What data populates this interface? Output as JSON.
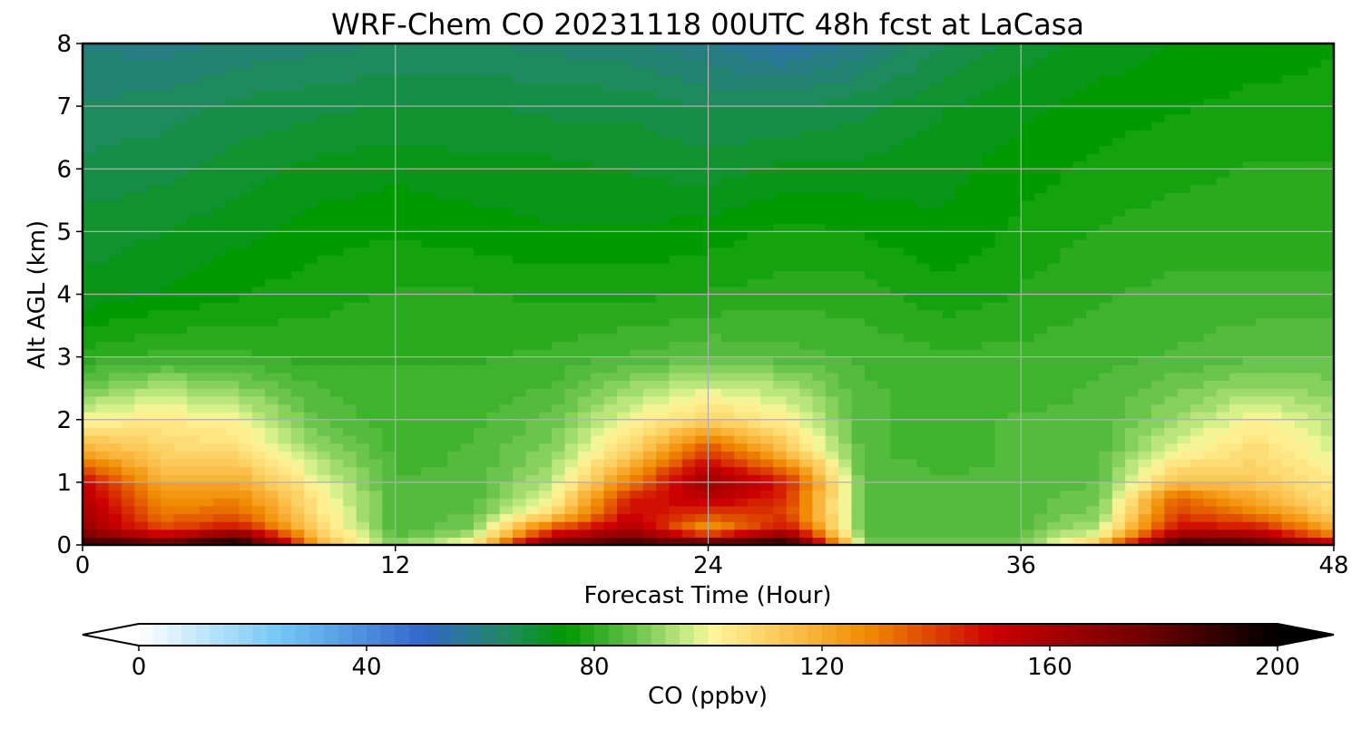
{
  "chart_data": {
    "type": "heatmap",
    "title": "WRF-Chem CO  20231118 00UTC 48h fcst at LaCasa",
    "xlabel": "Forecast Time (Hour)",
    "ylabel": "Alt AGL (km)",
    "xlim": [
      0,
      48
    ],
    "ylim": [
      0,
      8
    ],
    "x_ticks": [
      "0",
      "12",
      "24",
      "36",
      "48"
    ],
    "y_ticks": [
      "0",
      "1",
      "2",
      "3",
      "4",
      "5",
      "6",
      "7",
      "8"
    ],
    "grid": true,
    "colorbar": {
      "label": "CO  (ppbv)",
      "range": [
        0,
        200
      ],
      "ticks": [
        "0",
        "40",
        "80",
        "120",
        "160",
        "200"
      ],
      "extend": "both",
      "colors": [
        {
          "v": 0,
          "c": "#ffffff"
        },
        {
          "v": 25,
          "c": "#72c7f6"
        },
        {
          "v": 50,
          "c": "#3366cc"
        },
        {
          "v": 65,
          "c": "#1f8a5e"
        },
        {
          "v": 75,
          "c": "#009900"
        },
        {
          "v": 87,
          "c": "#66c24a"
        },
        {
          "v": 97,
          "c": "#d0ef8a"
        },
        {
          "v": 101,
          "c": "#fff59a"
        },
        {
          "v": 115,
          "c": "#fbbf4a"
        },
        {
          "v": 128,
          "c": "#f08a00"
        },
        {
          "v": 150,
          "c": "#cc0000"
        },
        {
          "v": 178,
          "c": "#6b0000"
        },
        {
          "v": 200,
          "c": "#000000"
        }
      ]
    },
    "times": [
      0,
      3,
      6,
      9,
      12,
      15,
      18,
      21,
      24,
      27,
      30,
      33,
      36,
      39,
      42,
      45,
      48
    ],
    "levels_km": [
      0,
      0.1,
      0.25,
      0.5,
      0.75,
      1,
      1.5,
      2,
      2.5,
      3,
      4,
      5,
      6,
      7,
      8
    ],
    "values": [
      [
        198,
        198,
        195,
        120,
        92,
        108,
        190,
        196,
        185,
        196,
        92,
        88,
        90,
        120,
        198,
        190,
        160
      ],
      [
        180,
        160,
        190,
        118,
        86,
        96,
        160,
        175,
        165,
        185,
        87,
        86,
        86,
        105,
        175,
        170,
        140
      ],
      [
        165,
        140,
        150,
        110,
        84,
        90,
        140,
        160,
        120,
        150,
        85,
        85,
        85,
        96,
        150,
        150,
        120
      ],
      [
        160,
        130,
        135,
        106,
        84,
        86,
        108,
        150,
        140,
        140,
        85,
        84,
        85,
        90,
        140,
        130,
        110
      ],
      [
        158,
        125,
        128,
        104,
        84,
        85,
        100,
        145,
        155,
        142,
        85,
        84,
        85,
        88,
        135,
        120,
        106
      ],
      [
        150,
        120,
        120,
        100,
        84,
        84,
        95,
        130,
        165,
        145,
        85,
        84,
        84,
        86,
        115,
        112,
        104
      ],
      [
        120,
        110,
        108,
        92,
        83,
        84,
        90,
        110,
        140,
        115,
        84,
        83,
        84,
        85,
        100,
        108,
        98
      ],
      [
        100,
        104,
        100,
        86,
        82,
        83,
        87,
        100,
        110,
        102,
        84,
        83,
        84,
        84,
        92,
        102,
        94
      ],
      [
        88,
        94,
        90,
        84,
        82,
        82,
        84,
        92,
        98,
        94,
        84,
        83,
        83,
        84,
        88,
        92,
        90
      ],
      [
        80,
        82,
        82,
        80,
        81,
        81,
        82,
        84,
        86,
        85,
        83,
        82,
        82,
        83,
        84,
        86,
        86
      ],
      [
        72,
        74,
        76,
        78,
        79,
        79,
        78,
        78,
        79,
        80,
        80,
        77,
        79,
        81,
        82,
        82,
        82
      ],
      [
        70,
        71,
        73,
        75,
        76,
        75,
        74,
        74,
        75,
        77,
        76,
        74,
        77,
        79,
        80,
        80,
        80
      ],
      [
        67,
        68,
        70,
        72,
        73,
        72,
        72,
        71,
        70,
        72,
        72,
        73,
        75,
        77,
        78,
        79,
        79
      ],
      [
        64,
        65,
        67,
        68,
        69,
        69,
        68,
        68,
        66,
        66,
        68,
        71,
        73,
        75,
        76,
        77,
        77
      ],
      [
        61,
        60,
        62,
        63,
        64,
        64,
        63,
        62,
        59,
        55,
        60,
        66,
        70,
        72,
        74,
        75,
        76
      ]
    ]
  }
}
